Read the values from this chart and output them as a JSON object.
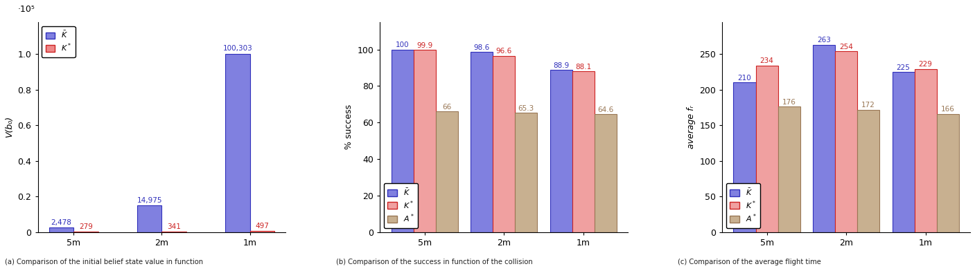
{
  "chart1": {
    "categories": [
      "5m",
      "2m",
      "1m"
    ],
    "K_bar_values": [
      2478,
      14975,
      100303
    ],
    "Kstar_bar_values": [
      279,
      341,
      497
    ],
    "K_labels": [
      "2,478",
      "14,975",
      "100,303"
    ],
    "Kstar_labels": [
      "279",
      "341",
      "497"
    ],
    "ylabel": "V(b₀)",
    "yticks": [
      0,
      0.2,
      0.4,
      0.6,
      0.8,
      1.0
    ],
    "scale": 100000,
    "scale_label": "·10⁵",
    "K_color_face": "#8080e0",
    "K_color_edge": "#3030bb",
    "Kstar_color_face": "#ee8888",
    "Kstar_color_edge": "#cc2222"
  },
  "chart2": {
    "categories": [
      "5m",
      "2m",
      "1m"
    ],
    "K_values": [
      100,
      98.6,
      88.9
    ],
    "Kstar_values": [
      99.9,
      96.6,
      88.1
    ],
    "Astar_values": [
      66,
      65.3,
      64.6
    ],
    "K_labels": [
      "100",
      "98.6",
      "88.9"
    ],
    "Kstar_labels": [
      "99.9",
      "96.6",
      "88.1"
    ],
    "Astar_labels": [
      "66",
      "65.3",
      "64.6"
    ],
    "ylabel": "% success",
    "yticks": [
      0,
      20,
      40,
      60,
      80,
      100
    ],
    "K_color_face": "#8080e0",
    "K_color_edge": "#3030bb",
    "Kstar_color_face": "#f0a0a0",
    "Kstar_color_edge": "#cc2222",
    "Astar_color_face": "#c8b090",
    "Astar_color_edge": "#997755"
  },
  "chart3": {
    "categories": [
      "5m",
      "2m",
      "1m"
    ],
    "K_values": [
      210,
      263,
      225
    ],
    "Kstar_values": [
      234,
      254,
      229
    ],
    "Astar_values": [
      176,
      172,
      166
    ],
    "K_labels": [
      "210",
      "263",
      "225"
    ],
    "Kstar_labels": [
      "234",
      "254",
      "229"
    ],
    "Astar_labels": [
      "176",
      "172",
      "166"
    ],
    "ylabel": "average fᵣ",
    "yticks": [
      0,
      50,
      100,
      150,
      200,
      250
    ],
    "K_color_face": "#8080e0",
    "K_color_edge": "#3030bb",
    "Kstar_color_face": "#f0a0a0",
    "Kstar_color_edge": "#cc2222",
    "Astar_color_face": "#c8b090",
    "Astar_color_edge": "#997755"
  },
  "bg_color": "#ffffff",
  "bar_width": 0.28,
  "axis_fontsize": 9,
  "legend_fontsize": 8,
  "annotation_fontsize": 7.5
}
